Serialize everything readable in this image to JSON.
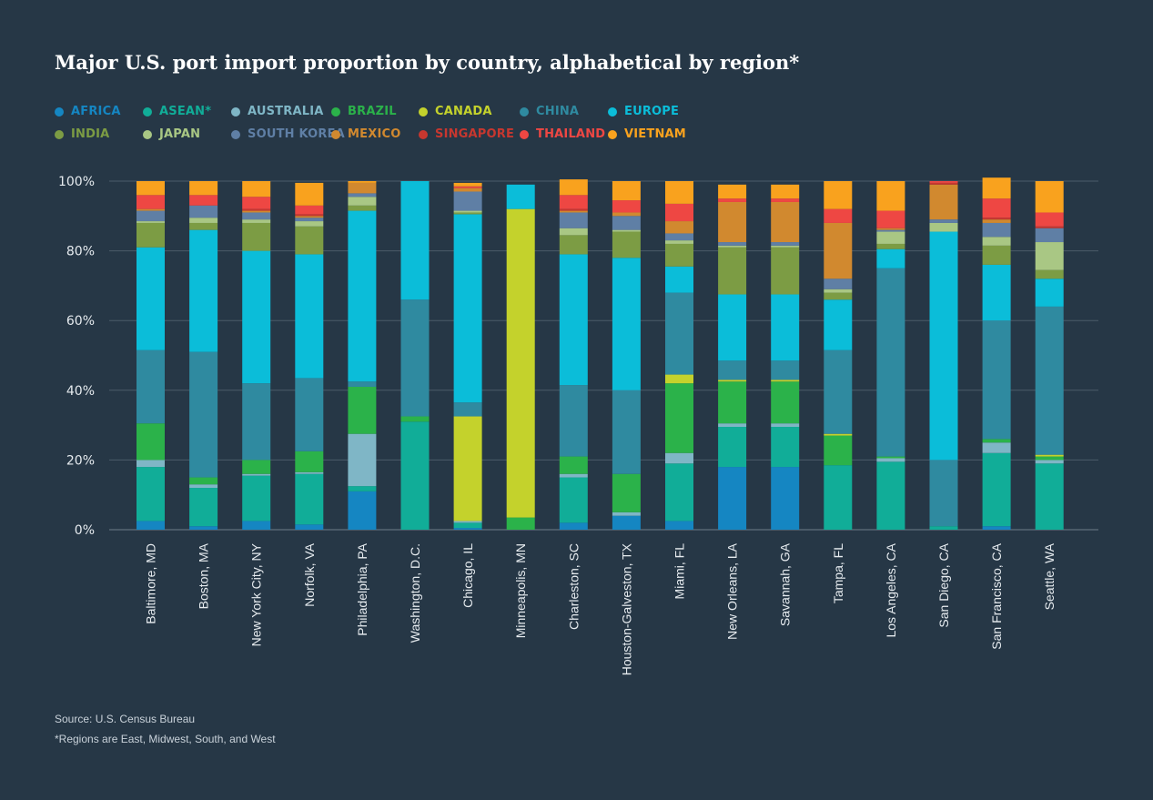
{
  "chart_data": {
    "type": "bar",
    "stacked": true,
    "title": "Major U.S. port import proportion by country, alphabetical by region*",
    "xlabel": "",
    "ylabel": "",
    "ylim": [
      0,
      100
    ],
    "y_ticks": [
      "0%",
      "20%",
      "40%",
      "60%",
      "80%",
      "100%"
    ],
    "grid": true,
    "legend_position": "top-left",
    "categories": [
      "Baltimore, MD",
      "Boston, MA",
      "New York City, NY",
      "Norfolk, VA",
      "Philadelphia, PA",
      "Washington, D.C.",
      "Chicago, IL",
      "Minneapolis, MN",
      "Charleston, SC",
      "Houston-Galveston, TX",
      "Miami, FL",
      "New Orleans, LA",
      "Savannah, GA",
      "Tampa, FL",
      "Los Angeles, CA",
      "San Diego, CA",
      "San Francisco, CA",
      "Seattle, WA"
    ],
    "series": [
      {
        "name": "AFRICA",
        "color": "#1586c2",
        "values": [
          2.5,
          1.0,
          2.5,
          1.5,
          11.0,
          0.0,
          0.5,
          0.0,
          2.0,
          4.0,
          2.5,
          18.0,
          18.0,
          0.0,
          0.0,
          0.0,
          1.0,
          0.0
        ]
      },
      {
        "name": "ASEAN*",
        "color": "#11ad98",
        "values": [
          15.5,
          11.0,
          13.0,
          14.5,
          1.5,
          31.0,
          1.5,
          0.0,
          13.0,
          0.0,
          16.5,
          11.5,
          11.5,
          18.5,
          19.5,
          1.0,
          21.0,
          19.0
        ]
      },
      {
        "name": "AUSTRALIA",
        "color": "#7fb6c6",
        "values": [
          2.0,
          1.0,
          0.5,
          0.5,
          15.0,
          0.0,
          0.5,
          0.0,
          1.0,
          1.0,
          3.0,
          1.0,
          1.0,
          0.0,
          1.0,
          0.0,
          3.0,
          1.0
        ]
      },
      {
        "name": "BRAZIL",
        "color": "#2bb24a",
        "values": [
          10.5,
          2.0,
          4.0,
          6.0,
          13.5,
          1.5,
          0.0,
          3.5,
          5.0,
          11.0,
          20.0,
          12.0,
          12.0,
          8.5,
          0.5,
          0.0,
          1.0,
          1.0
        ]
      },
      {
        "name": "CANADA",
        "color": "#c4d22c",
        "values": [
          0.0,
          0.0,
          0.0,
          0.0,
          0.0,
          0.0,
          30.0,
          88.5,
          0.0,
          0.0,
          2.5,
          0.5,
          0.5,
          0.5,
          0.0,
          0.0,
          0.0,
          0.5
        ]
      },
      {
        "name": "CHINA",
        "color": "#2f8aa0",
        "values": [
          21.0,
          36.0,
          22.0,
          21.0,
          1.5,
          33.5,
          4.0,
          0.0,
          20.5,
          24.0,
          23.5,
          5.5,
          5.5,
          24.0,
          54.0,
          19.0,
          34.0,
          42.5
        ]
      },
      {
        "name": "EUROPE",
        "color": "#0bbdd9",
        "values": [
          29.5,
          35.0,
          38.0,
          35.5,
          49.0,
          34.0,
          54.0,
          7.0,
          37.5,
          38.0,
          7.5,
          19.0,
          19.0,
          14.5,
          5.5,
          65.5,
          16.0,
          8.0
        ]
      },
      {
        "name": "INDIA",
        "color": "#7c9c44",
        "values": [
          7.0,
          2.0,
          8.0,
          8.0,
          1.5,
          0.0,
          0.5,
          0.0,
          5.5,
          7.5,
          6.5,
          13.5,
          13.5,
          2.0,
          1.5,
          0.0,
          5.5,
          2.5
        ]
      },
      {
        "name": "JAPAN",
        "color": "#a9c784",
        "values": [
          0.5,
          1.5,
          1.0,
          1.5,
          2.5,
          0.0,
          0.5,
          0.0,
          2.0,
          0.5,
          1.0,
          0.5,
          0.5,
          1.0,
          3.5,
          2.5,
          2.5,
          8.0
        ]
      },
      {
        "name": "SOUTH KOREA",
        "color": "#5f7fa5",
        "values": [
          3.0,
          3.5,
          2.0,
          1.0,
          1.0,
          0.0,
          5.5,
          0.0,
          4.5,
          4.0,
          2.0,
          1.0,
          1.0,
          3.0,
          0.5,
          1.0,
          4.0,
          4.0
        ]
      },
      {
        "name": "MEXICO",
        "color": "#d1892f",
        "values": [
          0.5,
          0.0,
          0.5,
          0.5,
          3.0,
          0.0,
          1.0,
          0.0,
          0.5,
          1.0,
          3.5,
          11.5,
          11.5,
          16.0,
          0.5,
          10.0,
          1.0,
          0.0
        ]
      },
      {
        "name": "SINGAPORE",
        "color": "#c7372f",
        "values": [
          0.0,
          0.0,
          0.5,
          0.5,
          0.0,
          0.0,
          0.0,
          0.0,
          0.5,
          0.0,
          0.0,
          0.0,
          0.0,
          0.0,
          0.0,
          0.5,
          0.5,
          0.5
        ]
      },
      {
        "name": "THAILAND",
        "color": "#ee4743",
        "values": [
          4.0,
          3.0,
          3.5,
          2.5,
          0.0,
          0.0,
          0.5,
          0.0,
          4.0,
          3.5,
          5.0,
          1.0,
          1.0,
          4.0,
          5.0,
          0.5,
          5.5,
          4.0
        ]
      },
      {
        "name": "VIETNAM",
        "color": "#f9a21e",
        "values": [
          4.0,
          4.0,
          4.5,
          6.5,
          0.5,
          0.0,
          1.0,
          0.0,
          4.5,
          5.5,
          6.5,
          4.0,
          4.0,
          8.0,
          8.5,
          0.0,
          6.0,
          9.0
        ]
      }
    ]
  },
  "footer": {
    "source": "Source: U.S. Census Bureau",
    "note": "*Regions are East, Midwest, South, and West"
  }
}
